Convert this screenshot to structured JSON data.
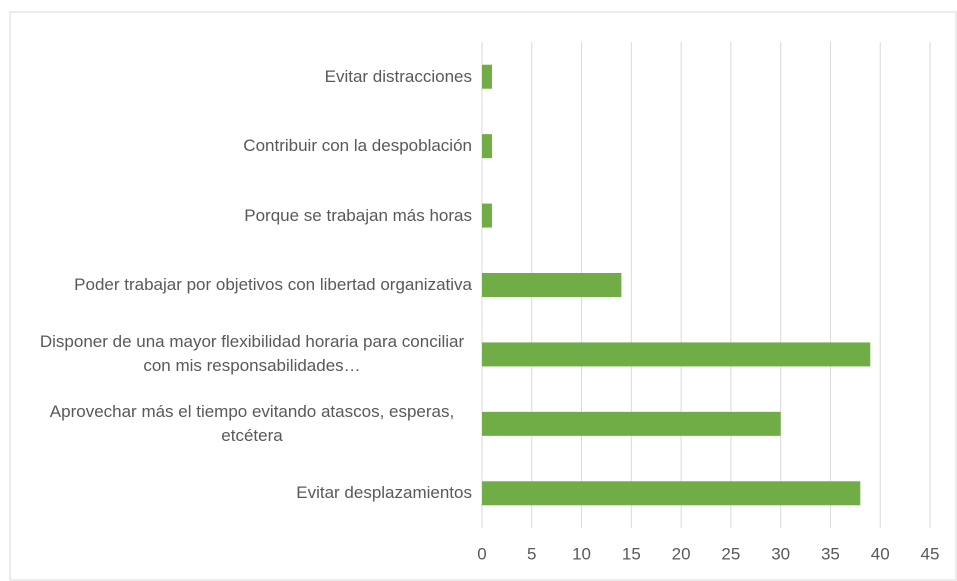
{
  "chart_data": {
    "type": "barh",
    "categories": [
      "Evitar distracciones",
      "Contribuir con la despoblación",
      "Porque se trabajan más horas",
      "Poder trabajar por objetivos con libertad organizativa",
      "Disponer de una mayor flexibilidad horaria para conciliar con mis responsabilidades…",
      "Aprovechar más el tiempo evitando atascos, esperas, etcétera",
      "Evitar desplazamientos"
    ],
    "values": [
      1,
      1,
      1,
      14,
      39,
      30,
      38
    ],
    "color": "#70ad47",
    "xlim": [
      0,
      45
    ],
    "xticks": [
      0,
      5,
      10,
      15,
      20,
      25,
      30,
      35,
      40,
      45
    ],
    "grid": true
  }
}
